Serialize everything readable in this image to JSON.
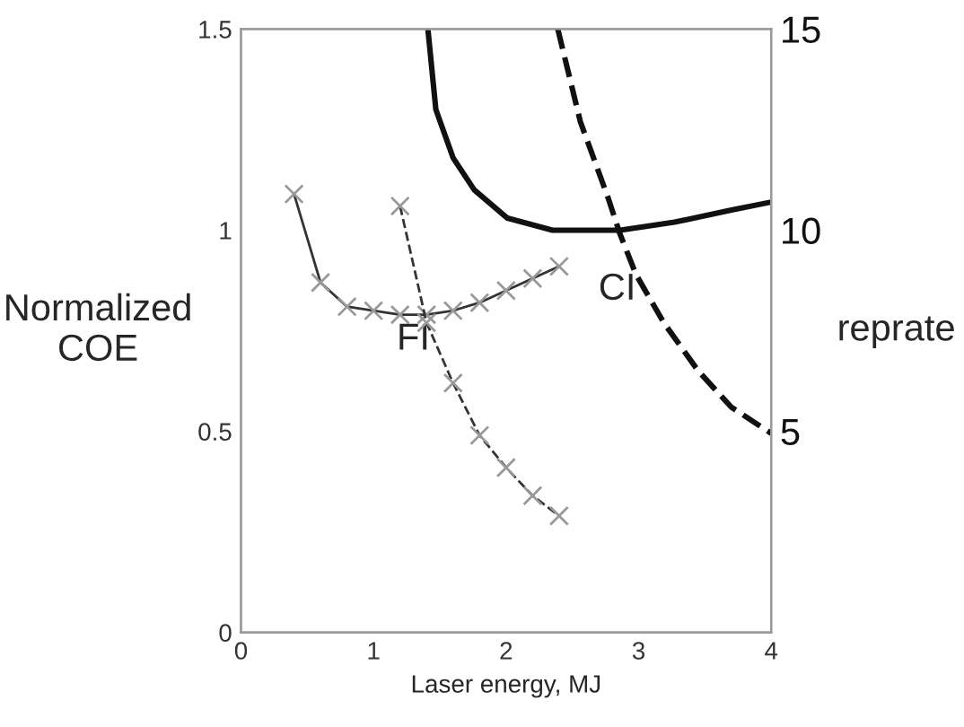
{
  "chart_data": {
    "type": "line",
    "xlabel": "Laser energy, MJ",
    "ylabel": "Normalized\nCOE",
    "y2label": "reprate",
    "xlim": [
      0,
      4
    ],
    "xticks": [
      0,
      1,
      2,
      3,
      4
    ],
    "ylim": [
      0,
      1.5
    ],
    "yticks": [
      0,
      0.5,
      1,
      1.5
    ],
    "y2lim": [
      0,
      15
    ],
    "y2ticks": [
      5,
      10,
      15
    ],
    "grid": false,
    "legend": false,
    "series": [
      {
        "name": "FI",
        "color": "#333333",
        "marker": "cross",
        "line_style": "solid",
        "x": [
          0.4,
          0.6,
          0.8,
          1.0,
          1.2,
          1.4,
          1.6,
          1.8,
          2.0,
          2.2,
          2.4
        ],
        "values": [
          1.09,
          0.87,
          0.81,
          0.8,
          0.79,
          0.79,
          0.8,
          0.82,
          0.85,
          0.88,
          0.91
        ]
      },
      {
        "color": "#333333",
        "marker": "cross",
        "line_style": "dashed",
        "axis": "y2",
        "x": [
          1.2,
          1.4,
          1.6,
          1.8,
          2.0,
          2.2,
          2.4
        ],
        "values": [
          10.6,
          7.7,
          6.2,
          4.9,
          4.1,
          3.4,
          2.9
        ]
      },
      {
        "name": "CI",
        "color": "#111111",
        "marker": "none",
        "line_style": "solid",
        "x": [
          1.41,
          1.47,
          1.6,
          1.76,
          2.01,
          2.35,
          2.86,
          3.27,
          3.7,
          4.0
        ],
        "values": [
          1.5,
          1.3,
          1.18,
          1.1,
          1.03,
          1.0,
          1.0,
          1.02,
          1.05,
          1.07
        ]
      },
      {
        "color": "#111111",
        "marker": "none",
        "line_style": "dashed",
        "axis": "y2",
        "x": [
          2.39,
          2.56,
          2.77,
          2.86,
          2.98,
          3.19,
          3.45,
          3.7,
          4.0
        ],
        "values": [
          15,
          12.7,
          10.8,
          9.9,
          8.9,
          7.7,
          6.5,
          5.6,
          4.95
        ]
      }
    ]
  }
}
